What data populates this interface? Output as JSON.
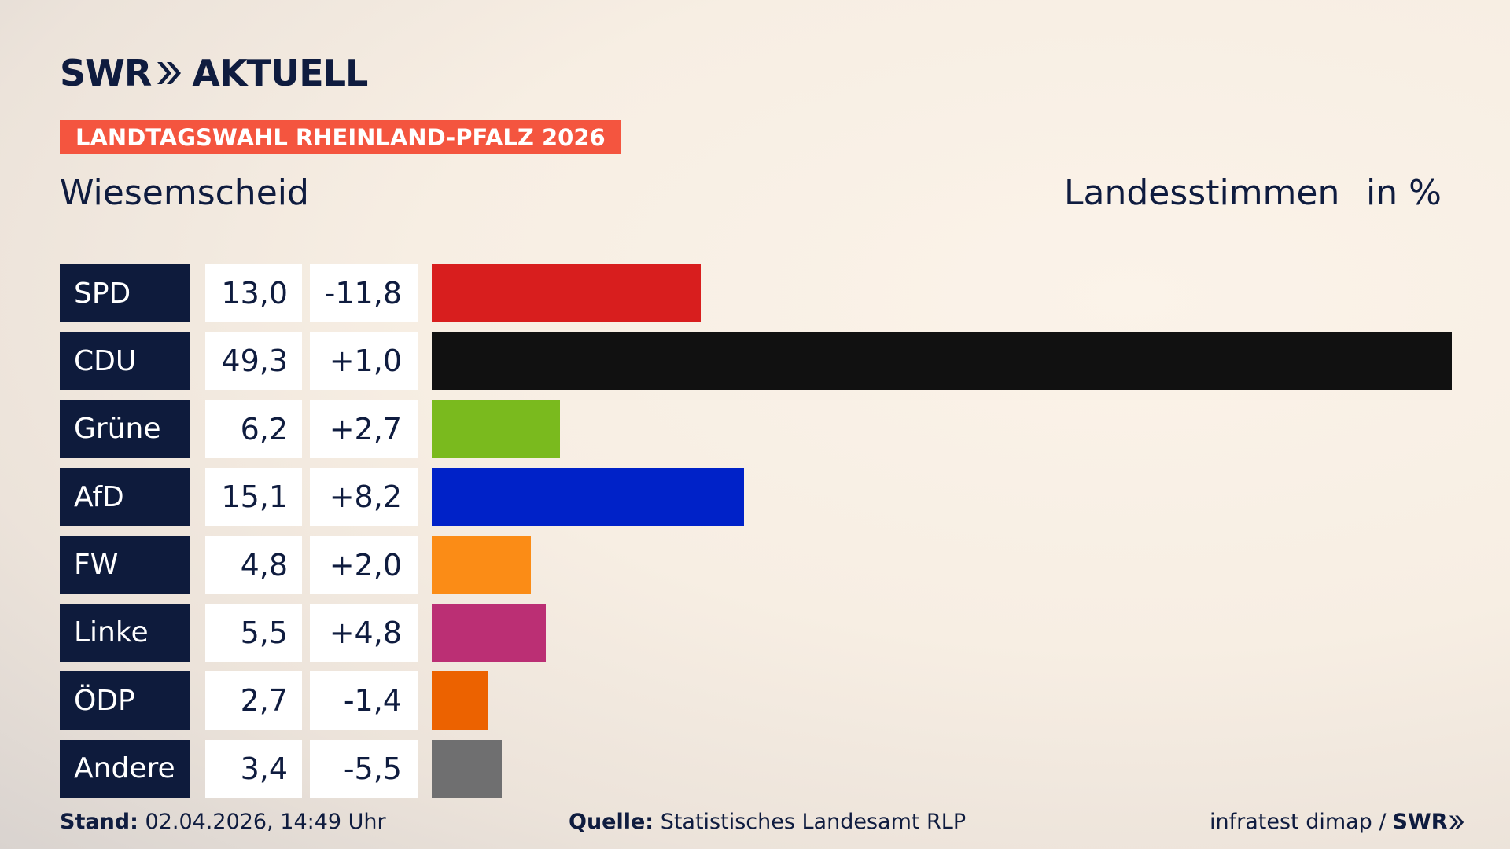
{
  "header": {
    "logo_left": "SWR",
    "logo_right": "AKTUELL",
    "election": "LANDTAGSWAHL RHEINLAND-PFALZ 2026",
    "location": "Wiesemscheid",
    "vote_type": "Landesstimmen",
    "unit": "in %"
  },
  "colors": {
    "accent": "#f4553f",
    "navy": "#0e1b3c"
  },
  "chart_data": {
    "type": "bar",
    "orientation": "horizontal",
    "categories": [
      "SPD",
      "CDU",
      "Grüne",
      "AfD",
      "FW",
      "Linke",
      "ÖDP",
      "Andere"
    ],
    "values": [
      13.0,
      49.3,
      6.2,
      15.1,
      4.8,
      5.5,
      2.7,
      3.4
    ],
    "value_labels": [
      "13,0",
      "49,3",
      "6,2",
      "15,1",
      "4,8",
      "5,5",
      "2,7",
      "3,4"
    ],
    "change_labels": [
      "-11,8",
      "+1,0",
      "+2,7",
      "+8,2",
      "+2,0",
      "+4,8",
      "-1,4",
      "-5,5"
    ],
    "bar_colors": [
      "#d81e1e",
      "#111111",
      "#7aba1e",
      "#0022c8",
      "#fb8c16",
      "#bb2f74",
      "#ec6200",
      "#6f6f70"
    ],
    "xlim": [
      0,
      49.3
    ]
  },
  "footer": {
    "stand_label": "Stand:",
    "stand_value": "02.04.2026, 14:49 Uhr",
    "source_label": "Quelle:",
    "source_value": "Statistisches Landesamt RLP",
    "credit": "infratest dimap /",
    "credit_brand": "SWR"
  }
}
